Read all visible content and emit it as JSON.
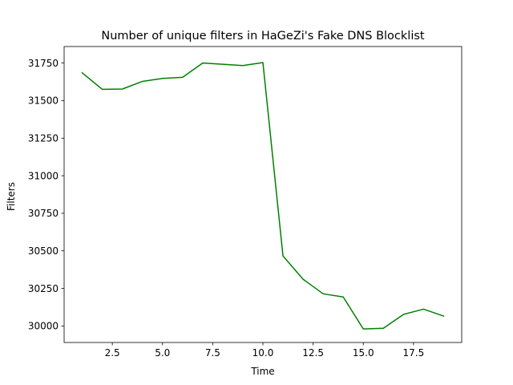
{
  "chart_data": {
    "type": "line",
    "title": "Number of unique filters in HaGeZi's Fake DNS Blocklist",
    "xlabel": "Time",
    "ylabel": "Filters",
    "xlim": [
      0.1,
      19.9
    ],
    "ylim": [
      29890,
      31860
    ],
    "xticks": [
      2.5,
      5.0,
      7.5,
      10.0,
      12.5,
      15.0,
      17.5
    ],
    "xtick_labels": [
      "2.5",
      "5.0",
      "7.5",
      "10.0",
      "12.5",
      "15.0",
      "17.5"
    ],
    "yticks": [
      30000,
      30250,
      30500,
      30750,
      31000,
      31250,
      31500,
      31750
    ],
    "ytick_labels": [
      "30000",
      "30250",
      "30500",
      "30750",
      "31000",
      "31250",
      "31500",
      "31750"
    ],
    "grid": false,
    "series": [
      {
        "color": "#008000",
        "x": [
          1,
          2,
          3,
          4,
          5,
          6,
          7,
          8,
          9,
          10,
          11,
          12,
          13,
          14,
          15,
          16,
          17,
          18,
          19
        ],
        "y": [
          31685,
          31575,
          31577,
          31628,
          31648,
          31655,
          31750,
          31742,
          31733,
          31753,
          30466,
          30311,
          30214,
          30193,
          29980,
          29985,
          30077,
          30112,
          30066
        ]
      }
    ]
  }
}
